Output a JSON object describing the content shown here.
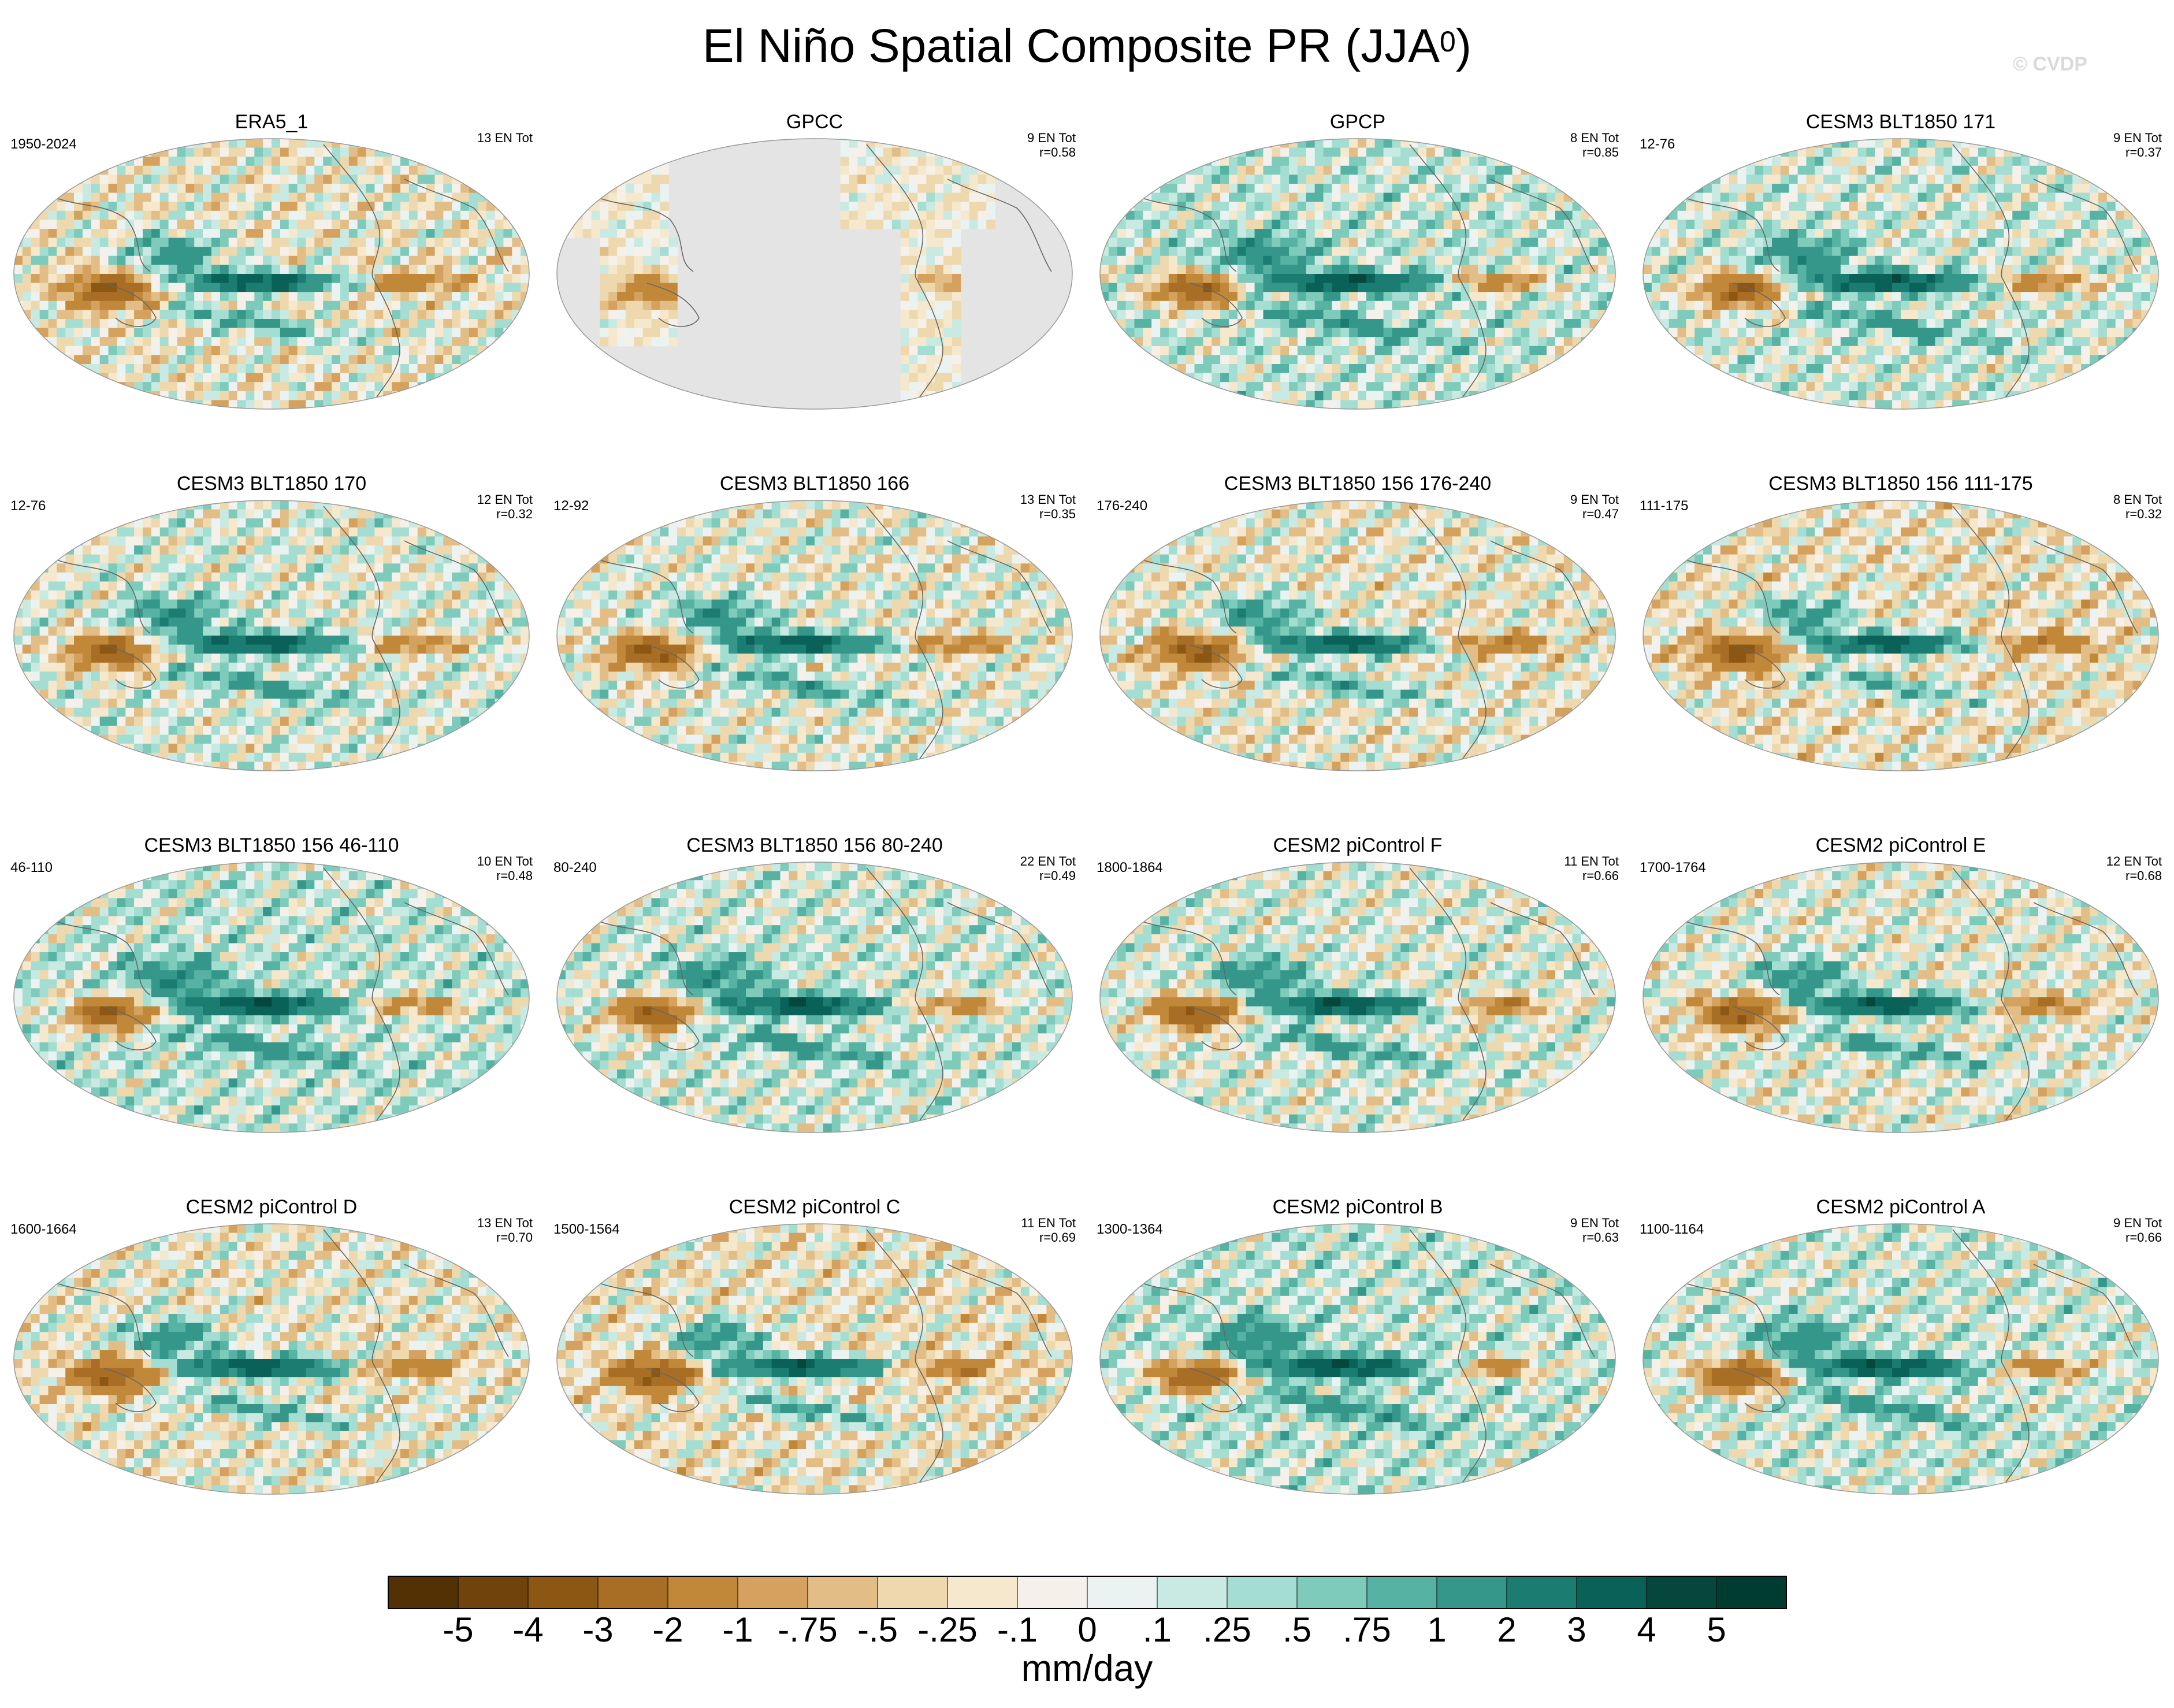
{
  "title": {
    "text": "El Niño Spatial Composite PR (JJA",
    "sup": "0",
    "close": ")"
  },
  "watermark": "© CVDP",
  "chart_data": {
    "type": "heatmap",
    "title": "El Niño Spatial Composite PR (JJA0)",
    "units": "mm/day",
    "colorbar": {
      "labels": [
        "-5",
        "-4",
        "-3",
        "-2",
        "-1",
        "-.75",
        "-.5",
        "-.25",
        "-.1",
        "0",
        ".1",
        ".25",
        ".5",
        ".75",
        "1",
        "2",
        "3",
        "4",
        "5"
      ],
      "colors": [
        "#543005",
        "#70420c",
        "#8c5613",
        "#a86e25",
        "#c08838",
        "#d4a25e",
        "#e2be86",
        "#eed8ae",
        "#f5e8cc",
        "#f5f1ea",
        "#eaf3f1",
        "#c8eae2",
        "#a4ddd1",
        "#7ecbbb",
        "#56b2a2",
        "#34978a",
        "#1b7d71",
        "#0a6157",
        "#05463d",
        "#003c30"
      ]
    },
    "panels": [
      {
        "title": "ERA5_1",
        "years": "1950-2024",
        "count": "13 EN Tot",
        "r": "",
        "kind": "reference"
      },
      {
        "title": "GPCC",
        "years": "",
        "count": "9 EN Tot",
        "r": "r=0.58",
        "kind": "land"
      },
      {
        "title": "GPCP",
        "years": "",
        "count": "8 EN Tot",
        "r": "r=0.85",
        "kind": "obs"
      },
      {
        "title": "CESM3 BLT1850 171",
        "years": "12-76",
        "count": "9 EN Tot",
        "r": "r=0.37",
        "kind": "model"
      },
      {
        "title": "CESM3 BLT1850 170",
        "years": "12-76",
        "count": "12 EN Tot",
        "r": "r=0.32",
        "kind": "model"
      },
      {
        "title": "CESM3 BLT1850 166",
        "years": "12-92",
        "count": "13 EN Tot",
        "r": "r=0.35",
        "kind": "model"
      },
      {
        "title": "CESM3 BLT1850 156 176-240",
        "years": "176-240",
        "count": "9 EN Tot",
        "r": "r=0.47",
        "kind": "model"
      },
      {
        "title": "CESM3 BLT1850 156 111-175",
        "years": "111-175",
        "count": "8 EN Tot",
        "r": "r=0.32",
        "kind": "model"
      },
      {
        "title": "CESM3 BLT1850 156 46-110",
        "years": "46-110",
        "count": "10 EN Tot",
        "r": "r=0.48",
        "kind": "model"
      },
      {
        "title": "CESM3 BLT1850 156 80-240",
        "years": "80-240",
        "count": "22 EN Tot",
        "r": "r=0.49",
        "kind": "model"
      },
      {
        "title": "CESM2 piControl F",
        "years": "1800-1864",
        "count": "11 EN Tot",
        "r": "r=0.66",
        "kind": "model"
      },
      {
        "title": "CESM2 piControl E",
        "years": "1700-1764",
        "count": "12 EN Tot",
        "r": "r=0.68",
        "kind": "model"
      },
      {
        "title": "CESM2 piControl D",
        "years": "1600-1664",
        "count": "13 EN Tot",
        "r": "r=0.70",
        "kind": "model"
      },
      {
        "title": "CESM2 piControl C",
        "years": "1500-1564",
        "count": "11 EN Tot",
        "r": "r=0.69",
        "kind": "model"
      },
      {
        "title": "CESM2 piControl B",
        "years": "1300-1364",
        "count": "9 EN Tot",
        "r": "r=0.63",
        "kind": "model"
      },
      {
        "title": "CESM2 piControl A",
        "years": "1100-1164",
        "count": "9 EN Tot",
        "r": "r=0.66",
        "kind": "model"
      }
    ]
  }
}
